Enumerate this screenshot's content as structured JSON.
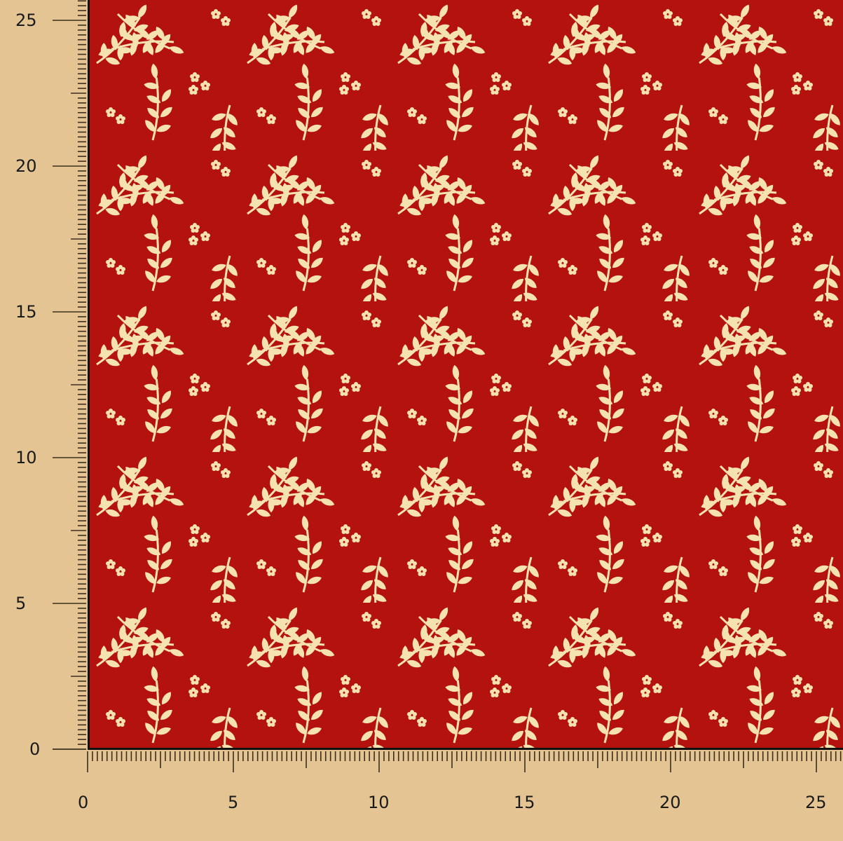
{
  "image": {
    "subject": "fabric-swatch",
    "pattern": "cream leafy vines and small flowers on red",
    "colors": {
      "background": "#e4c493",
      "fabric": "#b4120f",
      "motif": "#f4e2b0",
      "ruler": "#3a2f1c"
    }
  },
  "ruler_left": {
    "labels": [
      "0",
      "5",
      "10",
      "15",
      "20",
      "25"
    ]
  },
  "ruler_bottom": {
    "labels": [
      "0",
      "5",
      "10",
      "15",
      "20",
      "25"
    ]
  }
}
